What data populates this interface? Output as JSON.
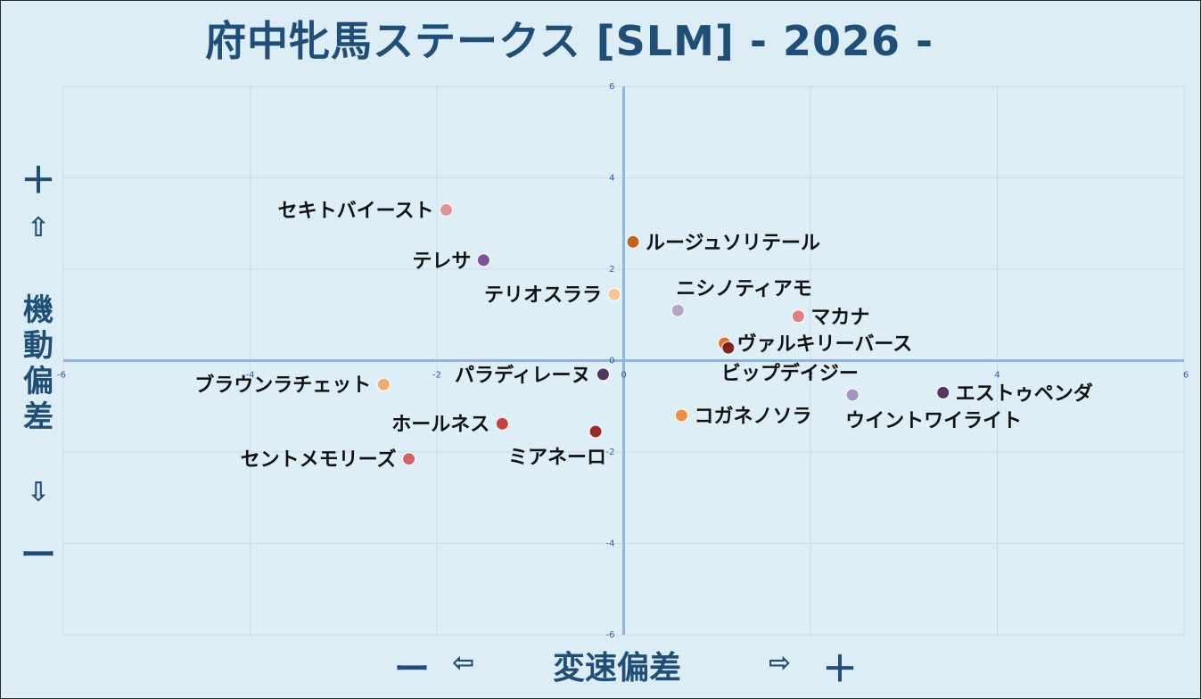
{
  "title": "府中牝馬ステークス [SLM]  - 2026 -",
  "y_axis": {
    "plus": "＋",
    "up_arrow": "⇧",
    "name": "機動偏差",
    "down_arrow": "⇩",
    "minus": "ー"
  },
  "x_axis": {
    "minus": "ー",
    "left_arrow": "⇦",
    "name": "変速偏差",
    "right_arrow": "⇨",
    "plus": "＋"
  },
  "chart_data": {
    "type": "scatter",
    "title": "府中牝馬ステークス [SLM]  - 2026 -",
    "xlabel": "変速偏差",
    "ylabel": "機動偏差",
    "xlim": [
      -6,
      6
    ],
    "ylim": [
      -6,
      6
    ],
    "x_ticks": [
      "-6",
      "-4",
      "-2",
      "0",
      "2",
      "4",
      "6"
    ],
    "y_ticks": [
      "6",
      "4",
      "2",
      "0",
      "-2",
      "-4",
      "-6"
    ],
    "grid": true,
    "points": [
      {
        "name": "セキトバイースト",
        "x": -1.9,
        "y": 3.3,
        "color": "#e08f8f",
        "label_pos": "left"
      },
      {
        "name": "ルージュソリテール",
        "x": 0.1,
        "y": 2.6,
        "color": "#c55a11",
        "label_pos": "right"
      },
      {
        "name": "テレサ",
        "x": -1.5,
        "y": 2.2,
        "color": "#7b4a9a",
        "label_pos": "left"
      },
      {
        "name": "テリオスララ",
        "x": -0.1,
        "y": 1.45,
        "color": "#f7c48e",
        "label_pos": "left"
      },
      {
        "name": "ニシノティアモ",
        "x": 0.58,
        "y": 1.1,
        "color": "#b3a1c9",
        "label_pos": "above-right"
      },
      {
        "name": "マカナ",
        "x": 1.87,
        "y": 0.97,
        "color": "#e07a7a",
        "label_pos": "right"
      },
      {
        "name": "ヴァルキリーバース",
        "x": 1.08,
        "y": 0.38,
        "color": "#e86a1a",
        "label_pos": "right"
      },
      {
        "name": "ビップデイジー",
        "x": 1.12,
        "y": 0.28,
        "color": "#7a1c1c",
        "label_pos": "below-right"
      },
      {
        "name": "パラディレーヌ",
        "x": -0.22,
        "y": -0.3,
        "color": "#4b2d5a",
        "label_pos": "left"
      },
      {
        "name": "ブラウンラチェット",
        "x": -2.57,
        "y": -0.52,
        "color": "#f2a86b",
        "label_pos": "left"
      },
      {
        "name": "エストゥペンダ",
        "x": 3.42,
        "y": -0.7,
        "color": "#4b2d5a",
        "label_pos": "right"
      },
      {
        "name": "ウイントワイライト",
        "x": 2.45,
        "y": -0.75,
        "color": "#a090c0",
        "label_pos": "below-right"
      },
      {
        "name": "コガネノソラ",
        "x": 0.62,
        "y": -1.2,
        "color": "#f08a3a",
        "label_pos": "right"
      },
      {
        "name": "ホールネス",
        "x": -1.3,
        "y": -1.38,
        "color": "#c43a3a",
        "label_pos": "left"
      },
      {
        "name": "ミアネーロ",
        "x": -0.3,
        "y": -1.55,
        "color": "#9c1f1f",
        "label_pos": "below-left"
      },
      {
        "name": "セントメモリーズ",
        "x": -2.3,
        "y": -2.15,
        "color": "#d65c5c",
        "label_pos": "left"
      }
    ]
  }
}
